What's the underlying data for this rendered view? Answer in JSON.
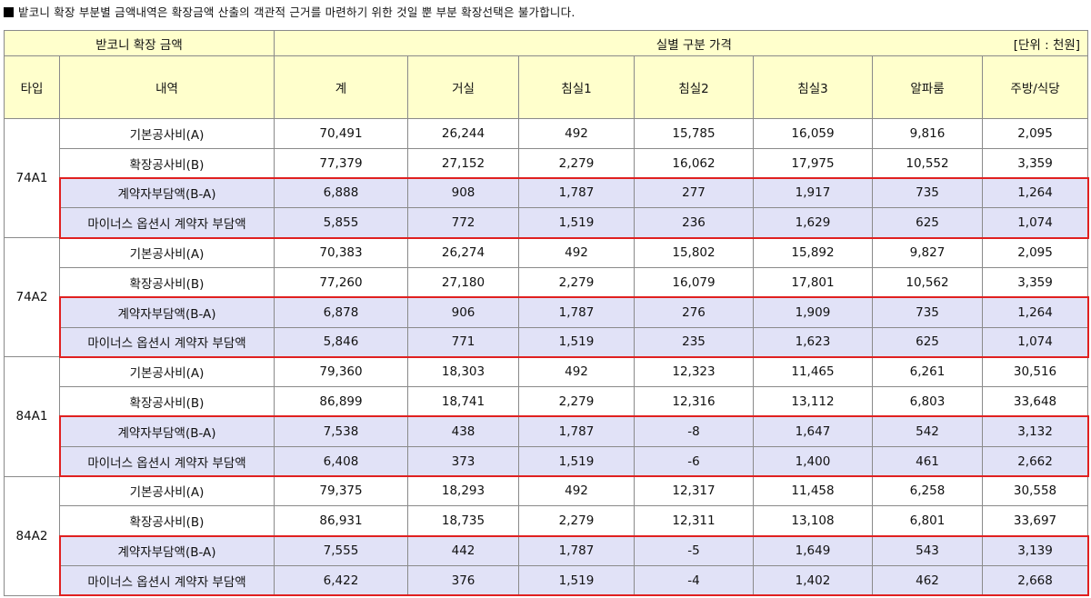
{
  "notice": "밭코니 확장 부분별 금액내역은 확장금액 산출의 객관적 근거를 마련하기 위한 것일 뿐 부분 확장선택은 불가합니다.",
  "header": {
    "group_left": "받코니 확장 금액",
    "group_right": "실별 구분 가격",
    "unit": "[단위 : 천원]",
    "columns": [
      "타입",
      "내역",
      "계",
      "거실",
      "침실1",
      "침실2",
      "침실3",
      "알파룸",
      "주방/식당"
    ]
  },
  "groups": [
    {
      "type": "74A1",
      "rows": [
        {
          "label": "기본공사비(A)",
          "values": [
            "70,491",
            "26,244",
            "492",
            "15,785",
            "16,059",
            "9,816",
            "2,095"
          ]
        },
        {
          "label": "확장공사비(B)",
          "values": [
            "77,379",
            "27,152",
            "2,279",
            "16,062",
            "17,975",
            "10,552",
            "3,359"
          ]
        },
        {
          "label": "계약자부담액(B-A)",
          "values": [
            "6,888",
            "908",
            "1,787",
            "277",
            "1,917",
            "735",
            "1,264"
          ]
        },
        {
          "label": "마이너스 옵션시 계약자 부담액",
          "values": [
            "5,855",
            "772",
            "1,519",
            "236",
            "1,629",
            "625",
            "1,074"
          ]
        }
      ]
    },
    {
      "type": "74A2",
      "rows": [
        {
          "label": "기본공사비(A)",
          "values": [
            "70,383",
            "26,274",
            "492",
            "15,802",
            "15,892",
            "9,827",
            "2,095"
          ]
        },
        {
          "label": "확장공사비(B)",
          "values": [
            "77,260",
            "27,180",
            "2,279",
            "16,079",
            "17,801",
            "10,562",
            "3,359"
          ]
        },
        {
          "label": "계약자부담액(B-A)",
          "values": [
            "6,878",
            "906",
            "1,787",
            "276",
            "1,909",
            "735",
            "1,264"
          ]
        },
        {
          "label": "마이너스 옵션시 계약자 부담액",
          "values": [
            "5,846",
            "771",
            "1,519",
            "235",
            "1,623",
            "625",
            "1,074"
          ]
        }
      ]
    },
    {
      "type": "84A1",
      "rows": [
        {
          "label": "기본공사비(A)",
          "values": [
            "79,360",
            "18,303",
            "492",
            "12,323",
            "11,465",
            "6,261",
            "30,516"
          ]
        },
        {
          "label": "확장공사비(B)",
          "values": [
            "86,899",
            "18,741",
            "2,279",
            "12,316",
            "13,112",
            "6,803",
            "33,648"
          ]
        },
        {
          "label": "계약자부담액(B-A)",
          "values": [
            "7,538",
            "438",
            "1,787",
            "-8",
            "1,647",
            "542",
            "3,132"
          ]
        },
        {
          "label": "마이너스 옵션시 계약자 부담액",
          "values": [
            "6,408",
            "373",
            "1,519",
            "-6",
            "1,400",
            "461",
            "2,662"
          ]
        }
      ]
    },
    {
      "type": "84A2",
      "rows": [
        {
          "label": "기본공사비(A)",
          "values": [
            "79,375",
            "18,293",
            "492",
            "12,317",
            "11,458",
            "6,258",
            "30,558"
          ]
        },
        {
          "label": "확장공사비(B)",
          "values": [
            "86,931",
            "18,735",
            "2,279",
            "12,311",
            "13,108",
            "6,801",
            "33,697"
          ]
        },
        {
          "label": "계약자부담액(B-A)",
          "values": [
            "7,555",
            "442",
            "1,787",
            "-5",
            "1,649",
            "543",
            "3,139"
          ]
        },
        {
          "label": "마이너스 옵션시 계약자 부담액",
          "values": [
            "6,422",
            "376",
            "1,519",
            "-4",
            "1,402",
            "462",
            "2,668"
          ]
        }
      ]
    }
  ],
  "colors": {
    "header_bg": "#ffffcc",
    "highlight_bg": "#e1e2f7",
    "highlight_border": "#e02020",
    "grid": "#8a8a8a"
  }
}
